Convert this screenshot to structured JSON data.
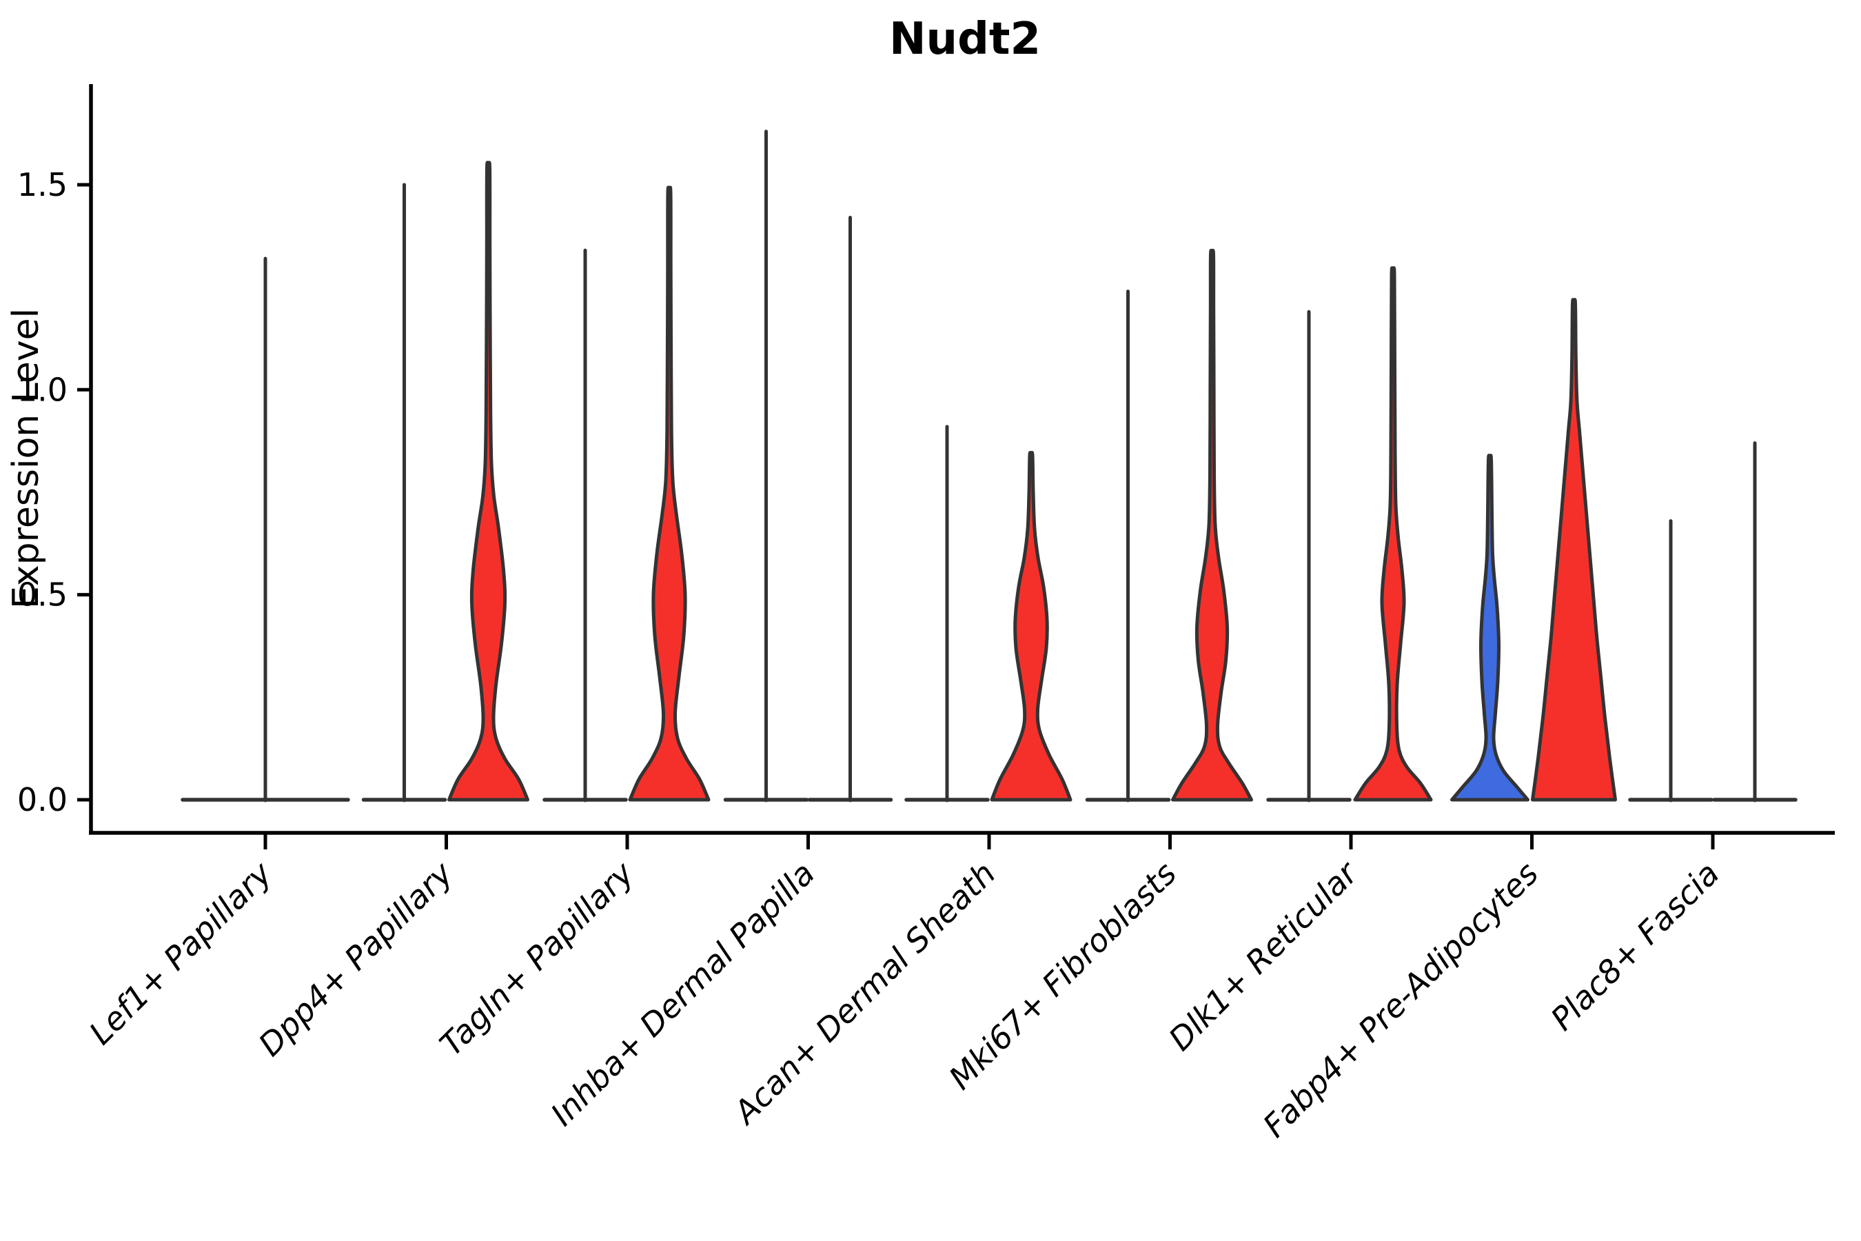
{
  "title": "Nudt2",
  "ylabel": "Expression Level",
  "chart_data": {
    "type": "violin",
    "title": "Nudt2",
    "xlabel": "",
    "ylabel": "Expression Level",
    "ytick_labels": [
      "0.0",
      "0.5",
      "1.0",
      "1.5"
    ],
    "ytick_values": [
      0.0,
      0.5,
      1.0,
      1.5
    ],
    "ylim": [
      -0.08,
      1.75
    ],
    "grid": false,
    "legend": "none",
    "categories": [
      "Lef1+ Papillary",
      "Dpp4+ Papillary",
      "Tagln+ Papillary",
      "Inhba+ Dermal Papilla",
      "Acan+ Dermal Sheath",
      "Mki67+ Fibroblasts",
      "Dlk1+ Reticular",
      "Fabp4+ Pre-Adipocytes",
      "Plac8+ Fascia"
    ],
    "colors": {
      "expressed_red": "#f5302b",
      "expressed_blue": "#3e6be0",
      "outline": "#333333",
      "axis": "#000000",
      "background": "#ffffff"
    },
    "violins": [
      {
        "category": "Lef1+ Papillary",
        "parts": [
          {
            "side": "center",
            "shape": "flat",
            "fill": "none",
            "max": 1.32,
            "half_width": 120,
            "profile": null
          }
        ]
      },
      {
        "category": "Dpp4+ Papillary",
        "parts": [
          {
            "side": "left",
            "shape": "flat",
            "fill": "none",
            "max": 1.5,
            "half_width": 59,
            "profile": null
          },
          {
            "side": "right",
            "shape": "bulge",
            "fill": "#f5302b",
            "max": 1.54,
            "half_width": 59,
            "profile": [
              [
                0,
                57
              ],
              [
                0.05,
                44
              ],
              [
                0.1,
                24
              ],
              [
                0.15,
                11
              ],
              [
                0.2,
                7.5
              ],
              [
                0.28,
                11
              ],
              [
                0.38,
                19
              ],
              [
                0.48,
                24
              ],
              [
                0.56,
                22
              ],
              [
                0.66,
                15
              ],
              [
                0.74,
                8
              ],
              [
                0.82,
                4.5
              ],
              [
                0.95,
                3.2
              ],
              [
                1.15,
                2.6
              ],
              [
                1.35,
                2.2
              ],
              [
                1.54,
                2
              ]
            ]
          }
        ]
      },
      {
        "category": "Tagln+ Papillary",
        "parts": [
          {
            "side": "left",
            "shape": "flat",
            "fill": "none",
            "max": 1.34,
            "half_width": 59,
            "profile": null
          },
          {
            "side": "right",
            "shape": "bulge",
            "fill": "#f5302b",
            "max": 1.48,
            "half_width": 59,
            "profile": [
              [
                0,
                57
              ],
              [
                0.05,
                44
              ],
              [
                0.1,
                25
              ],
              [
                0.15,
                12
              ],
              [
                0.21,
                8.5
              ],
              [
                0.3,
                14
              ],
              [
                0.4,
                21
              ],
              [
                0.5,
                23
              ],
              [
                0.6,
                18
              ],
              [
                0.7,
                10
              ],
              [
                0.78,
                5
              ],
              [
                0.9,
                3.2
              ],
              [
                1.1,
                2.6
              ],
              [
                1.3,
                2.2
              ],
              [
                1.48,
                2
              ]
            ]
          }
        ]
      },
      {
        "category": "Inhba+ Dermal Papilla",
        "parts": [
          {
            "side": "left",
            "shape": "flat",
            "fill": "none",
            "max": 1.63,
            "half_width": 59,
            "profile": null
          },
          {
            "side": "right",
            "shape": "flat",
            "fill": "none",
            "max": 1.42,
            "half_width": 59,
            "profile": null
          }
        ]
      },
      {
        "category": "Acan+ Dermal Sheath",
        "parts": [
          {
            "side": "left",
            "shape": "flat",
            "fill": "none",
            "max": 0.91,
            "half_width": 59,
            "profile": null
          },
          {
            "side": "right",
            "shape": "bulge",
            "fill": "#f5302b",
            "max": 0.84,
            "half_width": 59,
            "profile": [
              [
                0,
                57
              ],
              [
                0.05,
                45
              ],
              [
                0.11,
                26
              ],
              [
                0.17,
                12
              ],
              [
                0.22,
                9.5
              ],
              [
                0.29,
                15
              ],
              [
                0.37,
                22
              ],
              [
                0.44,
                23
              ],
              [
                0.52,
                18
              ],
              [
                0.59,
                10
              ],
              [
                0.66,
                5
              ],
              [
                0.75,
                3
              ],
              [
                0.84,
                2
              ]
            ]
          }
        ]
      },
      {
        "category": "Mki67+ Fibroblasts",
        "parts": [
          {
            "side": "left",
            "shape": "flat",
            "fill": "none",
            "max": 1.24,
            "half_width": 59,
            "profile": null
          },
          {
            "side": "right",
            "shape": "bulge",
            "fill": "#f5302b",
            "max": 1.33,
            "half_width": 59,
            "profile": [
              [
                0,
                57
              ],
              [
                0.04,
                44
              ],
              [
                0.09,
                24
              ],
              [
                0.13,
                11
              ],
              [
                0.18,
                8
              ],
              [
                0.26,
                13
              ],
              [
                0.34,
                20
              ],
              [
                0.42,
                22
              ],
              [
                0.51,
                17
              ],
              [
                0.59,
                9.5
              ],
              [
                0.67,
                4.5
              ],
              [
                0.8,
                3
              ],
              [
                1.0,
                2.6
              ],
              [
                1.2,
                2.2
              ],
              [
                1.33,
                2
              ]
            ]
          }
        ]
      },
      {
        "category": "Dlk1+ Reticular",
        "parts": [
          {
            "side": "left",
            "shape": "flat",
            "fill": "none",
            "max": 1.19,
            "half_width": 59,
            "profile": null
          },
          {
            "side": "right",
            "shape": "bulge",
            "fill": "#f5302b",
            "max": 1.28,
            "half_width": 59,
            "profile": [
              [
                0,
                55
              ],
              [
                0.04,
                40
              ],
              [
                0.08,
                20
              ],
              [
                0.12,
                9
              ],
              [
                0.18,
                5.5
              ],
              [
                0.28,
                6
              ],
              [
                0.38,
                11
              ],
              [
                0.48,
                16
              ],
              [
                0.56,
                13
              ],
              [
                0.64,
                7.5
              ],
              [
                0.72,
                4
              ],
              [
                0.85,
                3
              ],
              [
                1.05,
                2.5
              ],
              [
                1.28,
                2
              ]
            ]
          }
        ]
      },
      {
        "category": "Fabp4+ Pre-Adipocytes",
        "parts": [
          {
            "side": "left",
            "shape": "bulge",
            "fill": "#3e6be0",
            "max": 0.83,
            "half_width": 59,
            "profile": [
              [
                0,
                55
              ],
              [
                0.03,
                40
              ],
              [
                0.07,
                20
              ],
              [
                0.11,
                9
              ],
              [
                0.15,
                5.5
              ],
              [
                0.21,
                8
              ],
              [
                0.29,
                11.5
              ],
              [
                0.38,
                13
              ],
              [
                0.47,
                10.5
              ],
              [
                0.54,
                6.5
              ],
              [
                0.6,
                4
              ],
              [
                0.7,
                3
              ],
              [
                0.83,
                2
              ]
            ]
          },
          {
            "side": "right",
            "shape": "bulge",
            "fill": "#f5302b",
            "max": 1.21,
            "half_width": 62,
            "profile": [
              [
                0,
                60
              ],
              [
                0.1,
                52
              ],
              [
                0.2,
                45
              ],
              [
                0.3,
                39
              ],
              [
                0.4,
                33
              ],
              [
                0.5,
                28
              ],
              [
                0.6,
                23
              ],
              [
                0.7,
                18
              ],
              [
                0.8,
                13
              ],
              [
                0.9,
                8
              ],
              [
                0.97,
                4.5
              ],
              [
                1.08,
                2.8
              ],
              [
                1.21,
                2
              ]
            ]
          }
        ]
      },
      {
        "category": "Plac8+ Fascia",
        "parts": [
          {
            "side": "left",
            "shape": "flat",
            "fill": "none",
            "max": 0.68,
            "half_width": 59,
            "profile": null
          },
          {
            "side": "right",
            "shape": "flat",
            "fill": "none",
            "max": 0.87,
            "half_width": 59,
            "profile": null
          }
        ]
      }
    ]
  }
}
